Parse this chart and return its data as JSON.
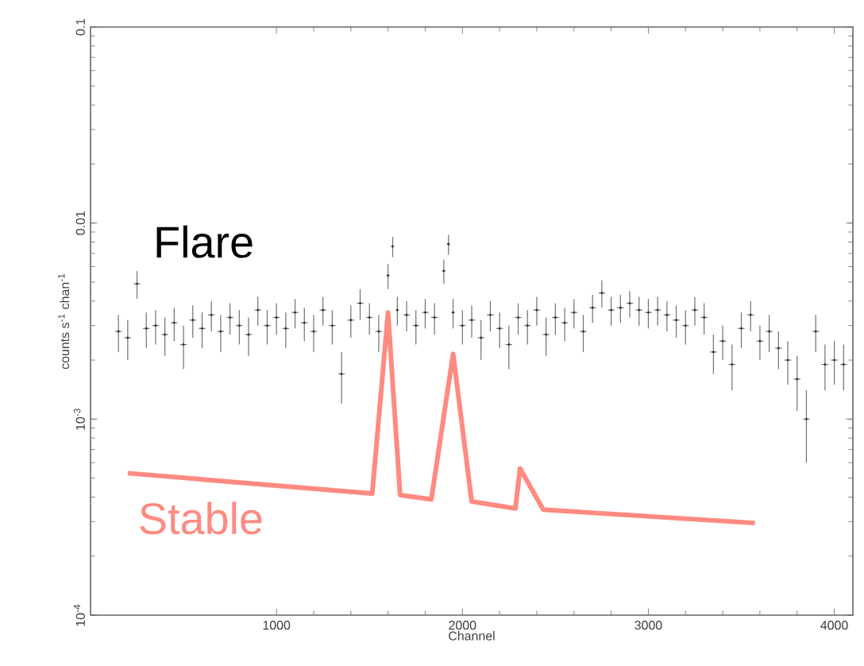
{
  "chart_data": {
    "type": "scatter",
    "xlabel": "Channel",
    "ylabel": "counts s$^{-1}$ chan$^{-1}$",
    "xlim": [
      0,
      4100
    ],
    "xticks": [
      1000,
      2000,
      3000,
      4000
    ],
    "ylim": [
      0.0001,
      0.1
    ],
    "yticks": [
      {
        "value": 0.0001,
        "label": "10$^{-4}$"
      },
      {
        "value": 0.001,
        "label": "10$^{-3}$"
      },
      0.01,
      0.1
    ],
    "log": "y",
    "marker": "none",
    "series": [
      {
        "name": "Flare",
        "color": "#333333",
        "x": [
          150,
          200,
          250,
          300,
          350,
          400,
          450,
          500,
          550,
          600,
          650,
          700,
          750,
          800,
          850,
          900,
          950,
          1000,
          1050,
          1100,
          1150,
          1200,
          1250,
          1300,
          1350,
          1400,
          1450,
          1500,
          1550,
          1600,
          1625,
          1650,
          1700,
          1750,
          1800,
          1850,
          1900,
          1925,
          1950,
          2000,
          2050,
          2100,
          2150,
          2200,
          2250,
          2300,
          2350,
          2400,
          2450,
          2500,
          2550,
          2600,
          2650,
          2700,
          2750,
          2800,
          2850,
          2900,
          2950,
          3000,
          3050,
          3100,
          3150,
          3200,
          3250,
          3300,
          3350,
          3400,
          3450,
          3500,
          3550,
          3600,
          3650,
          3700,
          3750,
          3800,
          3850,
          3900,
          3950,
          4000,
          4050
        ],
        "values": [
          0.0028,
          0.0026,
          0.0049,
          0.0029,
          0.003,
          0.0027,
          0.0031,
          0.0024,
          0.0032,
          0.0029,
          0.0034,
          0.0028,
          0.0033,
          0.003,
          0.0027,
          0.0036,
          0.003,
          0.0033,
          0.0029,
          0.0035,
          0.0031,
          0.0028,
          0.0036,
          0.003,
          0.0017,
          0.0032,
          0.0039,
          0.0033,
          0.0028,
          0.0054,
          0.0076,
          0.0036,
          0.0034,
          0.003,
          0.0035,
          0.0033,
          0.0057,
          0.0078,
          0.0035,
          0.003,
          0.0032,
          0.0026,
          0.0034,
          0.0029,
          0.0024,
          0.0033,
          0.003,
          0.0036,
          0.0027,
          0.0033,
          0.0031,
          0.0035,
          0.0028,
          0.0037,
          0.0044,
          0.0036,
          0.0037,
          0.0039,
          0.0036,
          0.0035,
          0.0036,
          0.0034,
          0.0032,
          0.003,
          0.0036,
          0.0033,
          0.0022,
          0.0025,
          0.0019,
          0.0029,
          0.0034,
          0.0025,
          0.0028,
          0.0023,
          0.002,
          0.0016,
          0.001,
          0.0028,
          0.0019,
          0.002,
          0.0019
        ],
        "errors": [
          0.0006,
          0.0006,
          0.0008,
          0.0006,
          0.0006,
          0.0006,
          0.0006,
          0.0006,
          0.0006,
          0.0006,
          0.0006,
          0.0006,
          0.0006,
          0.0006,
          0.0006,
          0.0006,
          0.0006,
          0.0006,
          0.0006,
          0.0006,
          0.0006,
          0.0006,
          0.0006,
          0.0006,
          0.0005,
          0.0006,
          0.0007,
          0.0006,
          0.0006,
          0.0008,
          0.0009,
          0.0006,
          0.0006,
          0.0006,
          0.0006,
          0.0006,
          0.0008,
          0.0009,
          0.0006,
          0.0006,
          0.0006,
          0.0006,
          0.0006,
          0.0006,
          0.0006,
          0.0006,
          0.0006,
          0.0006,
          0.0006,
          0.0006,
          0.0006,
          0.0006,
          0.0006,
          0.0006,
          0.0007,
          0.0006,
          0.0006,
          0.0006,
          0.0006,
          0.0006,
          0.0006,
          0.0006,
          0.0006,
          0.0006,
          0.0006,
          0.0006,
          0.0005,
          0.0005,
          0.0005,
          0.0006,
          0.0006,
          0.0005,
          0.0006,
          0.0005,
          0.0005,
          0.0005,
          0.0004,
          0.0006,
          0.0005,
          0.0005,
          0.0005
        ],
        "xerrors": [
          18,
          18,
          18,
          18,
          18,
          18,
          18,
          18,
          18,
          18,
          18,
          18,
          18,
          18,
          18,
          18,
          18,
          18,
          18,
          18,
          18,
          18,
          18,
          18,
          18,
          18,
          18,
          18,
          18,
          8,
          8,
          8,
          18,
          18,
          18,
          18,
          8,
          8,
          8,
          18,
          18,
          18,
          18,
          18,
          18,
          18,
          18,
          18,
          18,
          18,
          18,
          18,
          18,
          18,
          18,
          18,
          18,
          18,
          18,
          18,
          18,
          18,
          18,
          18,
          18,
          18,
          18,
          18,
          18,
          18,
          18,
          18,
          18,
          18,
          18,
          18,
          18,
          18,
          18,
          18,
          18
        ]
      },
      {
        "name": "Stable",
        "type": "line",
        "color": "#ff8a80",
        "line_style": "solid",
        "x": [
          200,
          1515,
          1600,
          1665,
          1833,
          1950,
          2050,
          2285,
          2310,
          2435,
          3573
        ],
        "values": [
          0.00053,
          0.000417,
          0.0035,
          0.00041,
          0.00039,
          0.00215,
          0.00038,
          0.00035,
          0.00056,
          0.000345,
          0.000295
        ]
      }
    ]
  }
}
